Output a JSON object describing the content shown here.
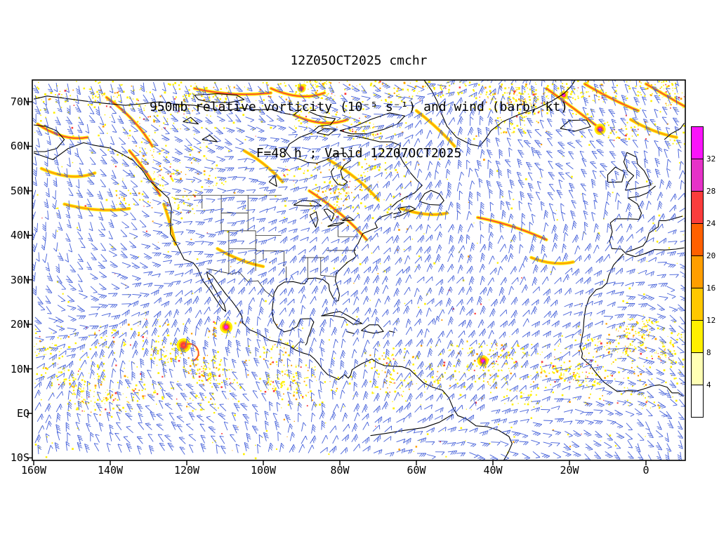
{
  "figure": {
    "title": "12Z05OCT2025 cmchr",
    "subtitle": "950mb relative vorticity (10⁻⁵ s⁻¹) and wind (barb; kt)",
    "valid": "F=48 h ; Valid 12Z07OCT2025"
  },
  "axes": {
    "lat_ticks": [
      "70N",
      "60N",
      "50N",
      "40N",
      "30N",
      "20N",
      "10N",
      "EQ",
      "10S"
    ],
    "lon_ticks": [
      "160W",
      "140W",
      "120W",
      "100W",
      "80W",
      "60W",
      "40W",
      "20W",
      "0"
    ]
  },
  "chart_data": {
    "type": "heatmap",
    "subtype": "meteorological lat-lon map: shaded relative vorticity, wind barbs, coastlines",
    "title": "12Z05OCT2025 cmchr",
    "subtitle": "950mb relative vorticity (10⁻⁵ s⁻¹) and wind (barb; kt)",
    "forecast_line": "F=48 h ; Valid 12Z07OCT2025",
    "model": "cmchr",
    "init_time": "12Z05OCT2025",
    "forecast_hour": 48,
    "valid_time": "12Z07OCT2025",
    "level_mb": 950,
    "shaded_field": "relative vorticity",
    "shaded_units": "10⁻⁵ s⁻¹",
    "vector_field": "wind",
    "vector_style": "barb",
    "vector_units": "kt",
    "x_axis": {
      "label": "longitude",
      "ticks": [
        "160W",
        "140W",
        "120W",
        "100W",
        "80W",
        "60W",
        "40W",
        "20W",
        "0"
      ],
      "range_deg": [
        -160,
        10
      ]
    },
    "y_axis": {
      "label": "latitude",
      "ticks": [
        "70N",
        "60N",
        "50N",
        "40N",
        "30N",
        "20N",
        "10N",
        "EQ",
        "10S"
      ],
      "range_deg": [
        -10.5,
        74.8
      ]
    },
    "grid": false,
    "colorbar": {
      "orientation": "vertical-right",
      "levels": [
        4,
        8,
        12,
        16,
        20,
        24,
        28,
        32
      ],
      "colors_bottom_to_top": [
        "#ffffff",
        "#ffffb4",
        "#fff000",
        "#ffc800",
        "#ff9e00",
        "#ff6000",
        "#fa3c3c",
        "#e632c8",
        "#fa14fa"
      ]
    },
    "vorticity_maxima": [
      {
        "lon": "110W",
        "lat": "19N"
      },
      {
        "lon": "121W",
        "lat": "15N"
      },
      {
        "lon": "43W",
        "lat": "12N"
      }
    ],
    "styles": {
      "barb_color": "#3a57d7",
      "coast_color": "#000000",
      "frame_color": "#000000",
      "background": "#ffffff"
    }
  }
}
